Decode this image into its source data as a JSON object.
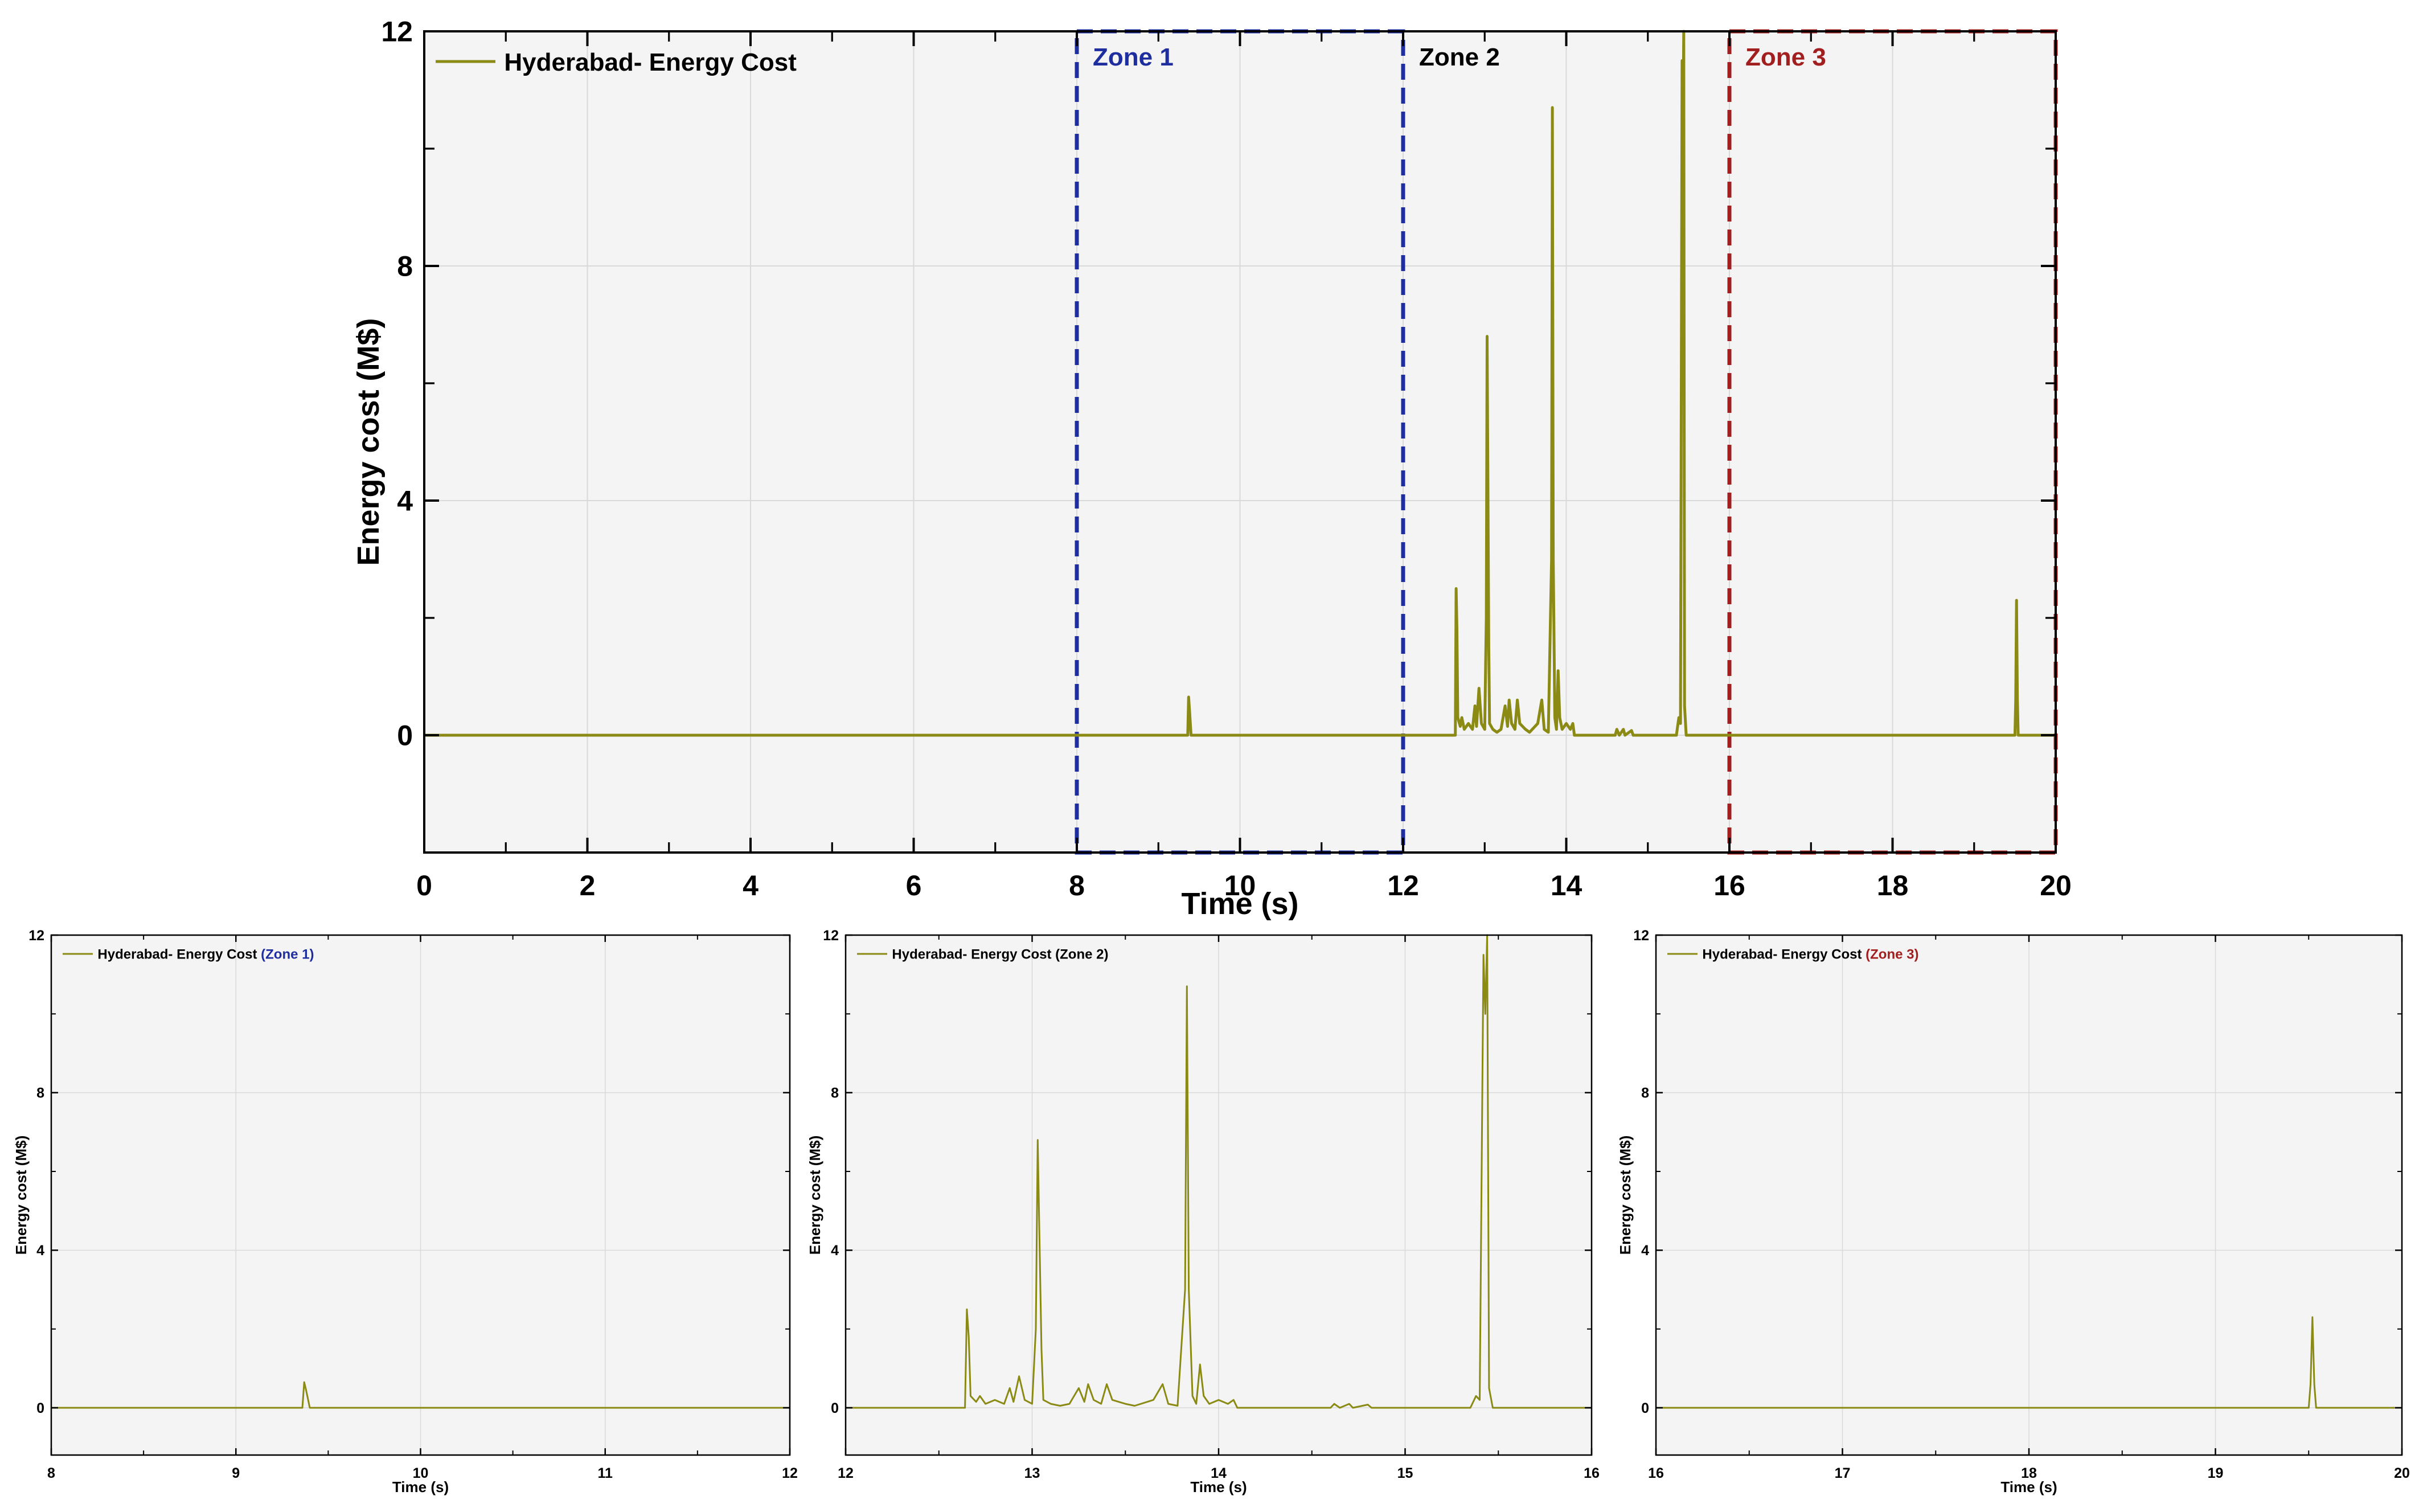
{
  "colors": {
    "series": "#8a8a14",
    "zone1": "#1e2e9e",
    "zone2": "#000000",
    "zone3": "#a11f1f",
    "panel_bg": "#f4f4f4",
    "grid": "#d9d9d9"
  },
  "chart_data": [
    {
      "id": "main",
      "type": "line",
      "xlabel": "Time (s)",
      "ylabel": "Energy cost (M$)",
      "xlim": [
        0,
        20
      ],
      "ylim": [
        -2,
        12
      ],
      "xticks": [
        0,
        2,
        4,
        6,
        8,
        10,
        12,
        14,
        16,
        18,
        20
      ],
      "yticks": [
        0,
        4,
        8,
        12
      ],
      "grid": true,
      "legend_position": "top-left",
      "legend": "Hyderabad- Energy Cost",
      "zones": [
        {
          "label": "Zone 1",
          "x": [
            8,
            12
          ],
          "boxed": true,
          "color": "#1e2e9e"
        },
        {
          "label": "Zone 2",
          "x": [
            12,
            16
          ],
          "boxed": false,
          "color": "#000000"
        },
        {
          "label": "Zone 3",
          "x": [
            16,
            20
          ],
          "boxed": true,
          "color": "#a11f1f"
        }
      ]
    },
    {
      "id": "zone1",
      "type": "line",
      "xlabel": "Time (s)",
      "ylabel": "Energy cost (M$)",
      "xlim": [
        8,
        12
      ],
      "ylim": [
        -1.2,
        12
      ],
      "xticks": [
        8,
        9,
        10,
        11,
        12
      ],
      "yticks": [
        0,
        4,
        8,
        12
      ],
      "grid": true,
      "legend_position": "top-left",
      "legend": "Hyderabad- Energy Cost",
      "legend_suffix": "(Zone 1)"
    },
    {
      "id": "zone2",
      "type": "line",
      "xlabel": "Time (s)",
      "ylabel": "Energy cost (M$)",
      "xlim": [
        12,
        16
      ],
      "ylim": [
        -1.2,
        12
      ],
      "xticks": [
        12,
        13,
        14,
        15,
        16
      ],
      "yticks": [
        0,
        4,
        8,
        12
      ],
      "grid": true,
      "legend_position": "top-left",
      "legend": "Hyderabad- Energy Cost",
      "legend_suffix": "(Zone 2)"
    },
    {
      "id": "zone3",
      "type": "line",
      "xlabel": "Time (s)",
      "ylabel": "Energy cost (M$)",
      "xlim": [
        16,
        20
      ],
      "ylim": [
        -1.2,
        12
      ],
      "xticks": [
        16,
        17,
        18,
        19,
        20
      ],
      "yticks": [
        0,
        4,
        8,
        12
      ],
      "grid": true,
      "legend_position": "top-left",
      "legend": "Hyderabad- Energy Cost",
      "legend_suffix": "(Zone 3)"
    }
  ],
  "series_points": [
    [
      0,
      0
    ],
    [
      9.36,
      0
    ],
    [
      9.37,
      0.65
    ],
    [
      9.38,
      0.45
    ],
    [
      9.4,
      0
    ],
    [
      12.64,
      0
    ],
    [
      12.65,
      2.5
    ],
    [
      12.66,
      1.8
    ],
    [
      12.67,
      0.3
    ],
    [
      12.7,
      0.15
    ],
    [
      12.72,
      0.3
    ],
    [
      12.75,
      0.1
    ],
    [
      12.8,
      0.2
    ],
    [
      12.85,
      0.1
    ],
    [
      12.88,
      0.5
    ],
    [
      12.9,
      0.15
    ],
    [
      12.93,
      0.8
    ],
    [
      12.96,
      0.2
    ],
    [
      13.0,
      0.1
    ],
    [
      13.02,
      2.0
    ],
    [
      13.03,
      6.8
    ],
    [
      13.05,
      1.5
    ],
    [
      13.06,
      0.2
    ],
    [
      13.1,
      0.1
    ],
    [
      13.15,
      0.05
    ],
    [
      13.2,
      0.1
    ],
    [
      13.25,
      0.5
    ],
    [
      13.28,
      0.15
    ],
    [
      13.3,
      0.6
    ],
    [
      13.33,
      0.2
    ],
    [
      13.37,
      0.1
    ],
    [
      13.4,
      0.6
    ],
    [
      13.43,
      0.2
    ],
    [
      13.5,
      0.1
    ],
    [
      13.55,
      0.05
    ],
    [
      13.65,
      0.2
    ],
    [
      13.7,
      0.6
    ],
    [
      13.73,
      0.1
    ],
    [
      13.78,
      0.05
    ],
    [
      13.82,
      3.0
    ],
    [
      13.83,
      10.7
    ],
    [
      13.84,
      3.0
    ],
    [
      13.86,
      0.3
    ],
    [
      13.88,
      0.1
    ],
    [
      13.9,
      1.1
    ],
    [
      13.92,
      0.3
    ],
    [
      13.95,
      0.1
    ],
    [
      14.0,
      0.2
    ],
    [
      14.05,
      0.1
    ],
    [
      14.08,
      0.2
    ],
    [
      14.1,
      0
    ],
    [
      14.6,
      0
    ],
    [
      14.62,
      0.1
    ],
    [
      14.65,
      0
    ],
    [
      14.7,
      0.1
    ],
    [
      14.72,
      0
    ],
    [
      14.8,
      0.08
    ],
    [
      14.82,
      0
    ],
    [
      15.35,
      0
    ],
    [
      15.38,
      0.3
    ],
    [
      15.4,
      0.2
    ],
    [
      15.42,
      11.5
    ],
    [
      15.43,
      10.0
    ],
    [
      15.44,
      12.0
    ],
    [
      15.45,
      0.5
    ],
    [
      15.47,
      0
    ],
    [
      19.5,
      0
    ],
    [
      19.51,
      0.6
    ],
    [
      19.52,
      2.3
    ],
    [
      19.53,
      0.6
    ],
    [
      19.54,
      0
    ],
    [
      20,
      0
    ]
  ]
}
